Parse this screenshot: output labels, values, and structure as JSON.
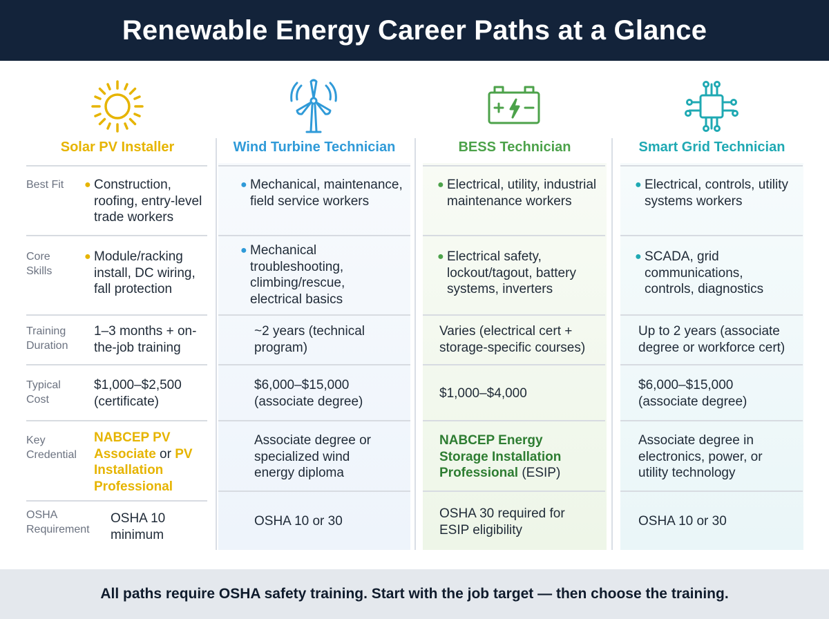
{
  "title": "Renewable Energy Career Paths at a Glance",
  "colors": {
    "header_bg": "#13233a",
    "solar": "#e6b400",
    "wind": "#2f9ad8",
    "bess": "#4ca24a",
    "grid": "#1fa9b3",
    "footer_bg": "#e4e8ed"
  },
  "columns": [
    {
      "key": "solar",
      "title": "Solar PV Installer",
      "icon": "sun-icon"
    },
    {
      "key": "wind",
      "title": "Wind Turbine Technician",
      "icon": "wind-turbine-icon"
    },
    {
      "key": "bess",
      "title": "BESS Technician",
      "icon": "battery-icon"
    },
    {
      "key": "grid",
      "title": "Smart Grid Technician",
      "icon": "circuit-icon"
    }
  ],
  "rows": [
    {
      "label": "Best Fit"
    },
    {
      "label": "Core Skills"
    },
    {
      "label": "Training Duration"
    },
    {
      "label": "Typical Cost"
    },
    {
      "label": "Key Credential"
    },
    {
      "label": "OSHA Requirement"
    }
  ],
  "cells": {
    "best_fit": {
      "solar": "Construction, roofing, entry-level trade workers",
      "wind": "Mechanical, maintenance, field service workers",
      "bess": "Electrical, utility, industrial maintenance workers",
      "grid": "Electrical, controls, utility systems workers"
    },
    "core_skills": {
      "solar": "Module/racking install, DC wiring, fall protection",
      "wind": "Mechanical troubleshooting, climbing/rescue, electrical basics",
      "bess": "Electrical safety, lockout/tagout, battery systems, inverters",
      "grid": "SCADA, grid communications, controls, diagnostics"
    },
    "training_duration": {
      "solar": "1–3 months + on-the-job training",
      "wind": "~2 years (technical program)",
      "bess": "Varies (electrical cert + storage-specific courses)",
      "grid": "Up to 2 years (associate degree or workforce cert)"
    },
    "typical_cost": {
      "solar": "$1,000–$2,500 (certificate)",
      "wind": "$6,000–$15,000 (associate degree)",
      "bess": "$1,000–$4,000",
      "grid": "$6,000–$15,000 (associate degree)"
    },
    "key_credential": {
      "solar_part1": "NABCEP PV Associate",
      "solar_part2": " or ",
      "solar_part3": "PV Installation Professional",
      "wind": "Associate degree or specialized wind energy diploma",
      "bess_part1": "NABCEP Energy Storage Installation Professional",
      "bess_part2": " (ESIP)",
      "grid": "Associate degree in electronics, power, or utility technology"
    },
    "osha": {
      "solar": "OSHA 10 minimum",
      "wind": "OSHA 10 or 30",
      "bess": "OSHA 30 required for ESIP eligibility",
      "grid": "OSHA 10 or 30"
    }
  },
  "footer": "All paths require OSHA safety training. Start with the job target — then choose the training."
}
